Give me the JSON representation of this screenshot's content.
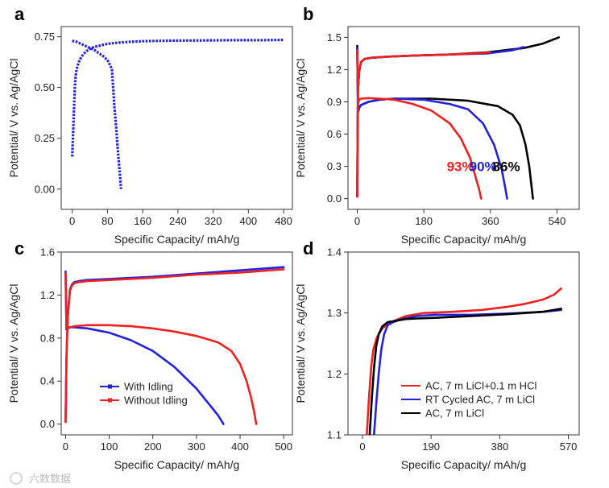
{
  "watermark": "六数数据",
  "colors": {
    "red": "#ee2020",
    "blue": "#2222dd",
    "black": "#000000"
  },
  "chart_data": [
    {
      "panel": "a",
      "type": "scatter",
      "xlabel": "Specific Capacity/ mAh/g",
      "ylabel": "Potential/ V vs. Ag/AgCl",
      "xlim": [
        -25,
        500
      ],
      "ylim": [
        -0.1,
        0.8
      ],
      "xticks": [
        0,
        80,
        160,
        240,
        320,
        400,
        480
      ],
      "yticks": [
        0.0,
        0.25,
        0.5,
        0.75
      ],
      "ytick_labels": [
        "0.00",
        "0.25",
        "0.50",
        "0.75"
      ],
      "series": [
        {
          "name": "charge",
          "color": "#2222dd",
          "style": "dotted",
          "x": [
            0,
            2,
            4,
            6,
            8,
            10,
            14,
            18,
            24,
            30,
            40,
            50,
            60,
            80,
            100,
            130,
            160,
            200,
            240,
            300,
            360,
            420,
            480
          ],
          "y": [
            0.16,
            0.28,
            0.4,
            0.5,
            0.56,
            0.59,
            0.62,
            0.64,
            0.66,
            0.675,
            0.69,
            0.7,
            0.705,
            0.715,
            0.72,
            0.725,
            0.728,
            0.73,
            0.731,
            0.732,
            0.733,
            0.733,
            0.734
          ]
        },
        {
          "name": "discharge",
          "color": "#2222dd",
          "style": "dotted",
          "x": [
            0,
            10,
            20,
            30,
            40,
            50,
            60,
            70,
            80,
            86,
            90,
            93,
            96,
            100,
            104,
            108,
            111
          ],
          "y": [
            0.73,
            0.725,
            0.715,
            0.705,
            0.695,
            0.685,
            0.67,
            0.655,
            0.635,
            0.61,
            0.59,
            0.5,
            0.4,
            0.3,
            0.18,
            0.08,
            0.0
          ]
        }
      ]
    },
    {
      "panel": "b",
      "type": "line",
      "xlabel": "Specific Capacity/ mAh/g",
      "ylabel": "Potential/ V vs. Ag/AgCl",
      "xlim": [
        -25,
        600
      ],
      "ylim": [
        -0.1,
        1.6
      ],
      "xticks": [
        0,
        180,
        360,
        540
      ],
      "yticks": [
        0.0,
        0.3,
        0.6,
        0.9,
        1.2,
        1.5
      ],
      "ytick_labels": [
        "0.0",
        "0.3",
        "0.6",
        "0.9",
        "1.2",
        "1.5"
      ],
      "series": [
        {
          "name": "86% charge",
          "color": "#000000",
          "x": [
            0,
            1,
            2,
            5,
            10,
            20,
            40,
            80,
            150,
            250,
            350,
            450,
            500,
            545
          ],
          "y": [
            0.02,
            0.6,
            1.0,
            1.18,
            1.27,
            1.3,
            1.31,
            1.32,
            1.33,
            1.34,
            1.36,
            1.4,
            1.44,
            1.5
          ]
        },
        {
          "name": "86% discharge",
          "color": "#000000",
          "x": [
            0,
            2,
            5,
            10,
            30,
            60,
            100,
            200,
            300,
            380,
            420,
            440,
            455,
            465,
            470,
            475
          ],
          "y": [
            1.42,
            0.8,
            0.85,
            0.87,
            0.9,
            0.92,
            0.93,
            0.93,
            0.91,
            0.86,
            0.78,
            0.68,
            0.5,
            0.3,
            0.15,
            0.0
          ]
        },
        {
          "name": "90% charge",
          "color": "#2222dd",
          "x": [
            0,
            1,
            2,
            5,
            10,
            20,
            40,
            80,
            150,
            250,
            350,
            420,
            450
          ],
          "y": [
            0.02,
            0.6,
            1.0,
            1.18,
            1.27,
            1.3,
            1.31,
            1.32,
            1.33,
            1.34,
            1.35,
            1.38,
            1.41
          ]
        },
        {
          "name": "90% discharge",
          "color": "#2222dd",
          "x": [
            0,
            2,
            5,
            10,
            30,
            60,
            100,
            180,
            250,
            300,
            340,
            370,
            390,
            400,
            405
          ],
          "y": [
            1.4,
            0.8,
            0.84,
            0.87,
            0.9,
            0.92,
            0.93,
            0.92,
            0.88,
            0.83,
            0.7,
            0.5,
            0.28,
            0.1,
            0.0
          ]
        },
        {
          "name": "93% charge",
          "color": "#ee2020",
          "x": [
            0,
            1,
            2,
            5,
            10,
            20,
            40,
            80,
            150,
            250,
            320,
            360
          ],
          "y": [
            0.02,
            0.6,
            1.0,
            1.18,
            1.27,
            1.3,
            1.31,
            1.32,
            1.33,
            1.34,
            1.35,
            1.36
          ]
        },
        {
          "name": "93% discharge",
          "color": "#ee2020",
          "x": [
            0,
            2,
            5,
            10,
            30,
            60,
            100,
            150,
            200,
            250,
            280,
            305,
            320,
            330,
            335
          ],
          "y": [
            1.38,
            0.88,
            0.92,
            0.93,
            0.935,
            0.93,
            0.92,
            0.88,
            0.82,
            0.7,
            0.56,
            0.38,
            0.2,
            0.08,
            0.0
          ]
        }
      ],
      "annotations": [
        {
          "text": "93%",
          "color": "#ee2020",
          "x": 242,
          "y": 0.12
        },
        {
          "text": "90%",
          "color": "#2222dd",
          "x": 303,
          "y": 0.12
        },
        {
          "text": "86%",
          "color": "#000000",
          "x": 366,
          "y": 0.12
        }
      ]
    },
    {
      "panel": "c",
      "type": "line",
      "xlabel": "Specific Capacity/ mAh/g",
      "ylabel": "Potential/ V vs. Ag/AgCl",
      "xlim": [
        -10,
        520
      ],
      "ylim": [
        -0.1,
        1.6
      ],
      "xticks": [
        0,
        100,
        200,
        300,
        400,
        500
      ],
      "yticks": [
        0.0,
        0.4,
        0.8,
        1.2,
        1.6
      ],
      "ytick_labels": [
        "0.0",
        "0.4",
        "0.8",
        "1.2",
        "1.6"
      ],
      "series": [
        {
          "name": "With Idling charge",
          "color": "#2222dd",
          "x": [
            0,
            2,
            5,
            10,
            15,
            20,
            30,
            50,
            100,
            200,
            300,
            400,
            500
          ],
          "y": [
            0.02,
            0.6,
            1.0,
            1.25,
            1.3,
            1.32,
            1.33,
            1.34,
            1.35,
            1.37,
            1.4,
            1.43,
            1.46
          ]
        },
        {
          "name": "With Idling discharge",
          "color": "#2222dd",
          "x": [
            0,
            2,
            5,
            10,
            20,
            50,
            100,
            150,
            200,
            250,
            300,
            330,
            350,
            362
          ],
          "y": [
            1.42,
            0.88,
            0.89,
            0.9,
            0.9,
            0.89,
            0.85,
            0.78,
            0.68,
            0.53,
            0.33,
            0.18,
            0.08,
            0.0
          ]
        },
        {
          "name": "Without Idling charge",
          "color": "#ee2020",
          "x": [
            0,
            2,
            5,
            10,
            15,
            20,
            30,
            50,
            100,
            200,
            300,
            400,
            500
          ],
          "y": [
            0.02,
            0.6,
            1.0,
            1.24,
            1.29,
            1.31,
            1.32,
            1.33,
            1.34,
            1.36,
            1.39,
            1.41,
            1.44
          ]
        },
        {
          "name": "Without Idling discharge",
          "color": "#ee2020",
          "x": [
            0,
            2,
            5,
            10,
            20,
            50,
            80,
            100,
            150,
            200,
            250,
            300,
            350,
            380,
            400,
            415,
            425,
            432,
            437
          ],
          "y": [
            1.4,
            0.9,
            0.9,
            0.9,
            0.91,
            0.92,
            0.92,
            0.92,
            0.91,
            0.89,
            0.86,
            0.82,
            0.76,
            0.68,
            0.56,
            0.4,
            0.25,
            0.12,
            0.0
          ]
        }
      ],
      "legend": [
        {
          "label": "With Idling",
          "color": "#2222dd"
        },
        {
          "label": "Without Idling",
          "color": "#ee2020"
        }
      ]
    },
    {
      "panel": "d",
      "type": "line",
      "xlabel": "Specific Capacity/ mAh/g",
      "ylabel": "Potential/ V vs. Ag/AgCl",
      "xlim": [
        -40,
        600
      ],
      "ylim": [
        1.1,
        1.4
      ],
      "xticks": [
        0,
        190,
        380,
        570
      ],
      "yticks": [
        1.1,
        1.2,
        1.3,
        1.4
      ],
      "ytick_labels": [
        "1.1",
        "1.2",
        "1.3",
        "1.4"
      ],
      "series": [
        {
          "name": "AC, 7 m LiCl+0.1 m HCl",
          "color": "#ee2020",
          "x": [
            12,
            18,
            24,
            30,
            40,
            55,
            80,
            120,
            170,
            250,
            330,
            400,
            450,
            500,
            530,
            550
          ],
          "y": [
            1.1,
            1.16,
            1.21,
            1.24,
            1.26,
            1.275,
            1.285,
            1.295,
            1.3,
            1.302,
            1.305,
            1.31,
            1.315,
            1.322,
            1.33,
            1.34
          ]
        },
        {
          "name": "RT Cycled AC, 7 m LiCl",
          "color": "#2222dd",
          "x": [
            32,
            38,
            45,
            52,
            60,
            70,
            85,
            110,
            150,
            200,
            300,
            400,
            500,
            550
          ],
          "y": [
            1.1,
            1.15,
            1.2,
            1.24,
            1.265,
            1.28,
            1.285,
            1.29,
            1.295,
            1.297,
            1.297,
            1.299,
            1.302,
            1.305
          ]
        },
        {
          "name": "AC, 7 m LiCl",
          "color": "#000000",
          "x": [
            20,
            26,
            32,
            38,
            45,
            55,
            70,
            90,
            120,
            150,
            200,
            300,
            400,
            500,
            550
          ],
          "y": [
            1.1,
            1.16,
            1.21,
            1.245,
            1.265,
            1.278,
            1.285,
            1.287,
            1.29,
            1.291,
            1.292,
            1.295,
            1.298,
            1.302,
            1.307
          ]
        }
      ],
      "legend": [
        {
          "label": "AC, 7 m LiCl+0.1 m HCl",
          "color": "#ee2020"
        },
        {
          "label": "RT Cycled AC, 7 m LiCl",
          "color": "#2222dd"
        },
        {
          "label": "AC, 7 m LiCl",
          "color": "#000000"
        }
      ]
    }
  ]
}
